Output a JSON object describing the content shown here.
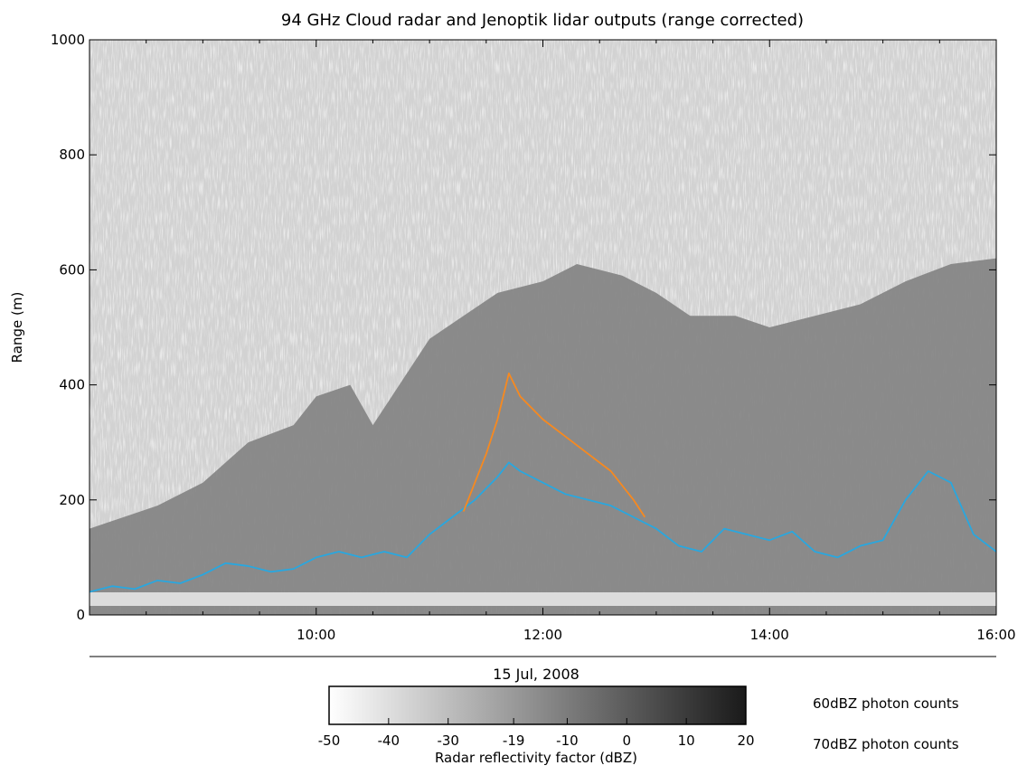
{
  "chart_data": {
    "type": "heatmap",
    "title": "94 GHz Cloud radar and Jenoptik lidar outputs (range corrected)",
    "ylabel": "Range (m)",
    "xlabel": "15 Jul, 2008",
    "xlim": [
      "08:00",
      "16:00"
    ],
    "ylim": [
      0,
      1000
    ],
    "x_ticks": [
      "10:00",
      "12:00",
      "14:00",
      "16:00"
    ],
    "y_ticks": [
      "0",
      "200",
      "400",
      "600",
      "800",
      "1000"
    ],
    "grid": false,
    "colorbar": {
      "label": "Radar reflectivity factor (dBZ)",
      "ticks": [
        "-50",
        "-40",
        "-30",
        "-19",
        "-10",
        "0",
        "10",
        "20"
      ],
      "range": [
        -50,
        20
      ],
      "colors": [
        "#ffffff",
        "#1a1a1a"
      ]
    },
    "cloud_top": {
      "x_hours": [
        8.0,
        8.3,
        8.6,
        9.0,
        9.4,
        9.8,
        10.0,
        10.3,
        10.5,
        10.8,
        11.0,
        11.3,
        11.6,
        12.0,
        12.3,
        12.7,
        13.0,
        13.3,
        13.7,
        14.0,
        14.4,
        14.8,
        15.2,
        15.6,
        16.0
      ],
      "y_m": [
        150,
        170,
        190,
        230,
        300,
        330,
        380,
        400,
        330,
        420,
        480,
        520,
        560,
        580,
        610,
        590,
        560,
        520,
        520,
        500,
        520,
        540,
        580,
        610,
        620
      ]
    },
    "series": [
      {
        "name": "60dBZ photon counts",
        "color": "#29a7df",
        "x_hours": [
          8.0,
          8.2,
          8.4,
          8.6,
          8.8,
          9.0,
          9.2,
          9.4,
          9.6,
          9.8,
          10.0,
          10.2,
          10.4,
          10.6,
          10.8,
          11.0,
          11.2,
          11.4,
          11.6,
          11.7,
          11.8,
          12.0,
          12.2,
          12.4,
          12.6,
          12.8,
          13.0,
          13.2,
          13.4,
          13.6,
          13.8,
          14.0,
          14.2,
          14.4,
          14.6,
          14.8,
          15.0,
          15.2,
          15.4,
          15.6,
          15.8,
          16.0
        ],
        "y_m": [
          40,
          50,
          45,
          60,
          55,
          70,
          90,
          85,
          75,
          80,
          100,
          110,
          100,
          110,
          100,
          140,
          170,
          200,
          240,
          265,
          250,
          230,
          210,
          200,
          190,
          170,
          150,
          120,
          110,
          150,
          140,
          130,
          145,
          110,
          100,
          120,
          130,
          200,
          250,
          230,
          140,
          110
        ]
      },
      {
        "name": "70dBZ photon counts",
        "color": "#f7891f",
        "x_hours": [
          11.3,
          11.4,
          11.5,
          11.6,
          11.7,
          11.8,
          12.0,
          12.2,
          12.4,
          12.6,
          12.8,
          12.9
        ],
        "y_m": [
          180,
          230,
          280,
          340,
          420,
          380,
          340,
          310,
          280,
          250,
          200,
          170
        ]
      }
    ]
  }
}
